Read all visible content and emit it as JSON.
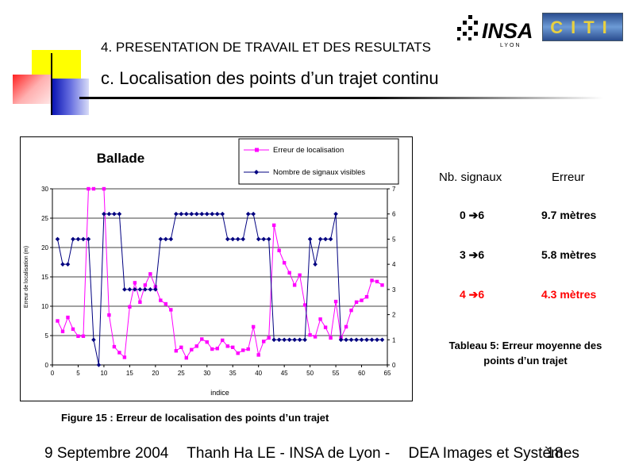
{
  "slide": {
    "section_heading": "4. PRESENTATION DE TRAVAIL ET DES RESULTATS",
    "title": "c. Localisation des points d’un trajet continu",
    "figure_caption": "Figure 15 : Erreur de localisation des points d’un trajet",
    "footer": {
      "date": "9 Septembre 2004",
      "author_lab": "Thanh Ha LE - INSA de Lyon -",
      "course": "DEA Images et Systèmes",
      "page": "18"
    },
    "logos": {
      "insa_name": "INSA",
      "insa_city": "LYON",
      "citi": "CITI"
    }
  },
  "side_table": {
    "headers": [
      "Nb. signaux",
      "Erreur"
    ],
    "rows": [
      {
        "signaux": "0 ➔6",
        "erreur": "9.7 mètres",
        "color": "#000000"
      },
      {
        "signaux": "3 ➔6",
        "erreur": "5.8 mètres",
        "color": "#000000"
      },
      {
        "signaux": "4 ➔6",
        "erreur": "4.3 mètres",
        "color": "#ff0000"
      }
    ],
    "caption": "Tableau 5: Erreur  moyenne des points d’un trajet"
  },
  "chart_data": {
    "type": "line",
    "title": "Ballade",
    "xlabel": "indice",
    "ylabel_left": "Erreur de localisation (m)",
    "xlim": [
      0,
      65
    ],
    "ylim_left": [
      0,
      30
    ],
    "ylim_right": [
      0,
      7
    ],
    "xticks": [
      0,
      5,
      10,
      15,
      20,
      25,
      30,
      35,
      40,
      45,
      50,
      55,
      60,
      65
    ],
    "yticks_left": [
      0,
      5,
      10,
      15,
      20,
      25,
      30
    ],
    "yticks_right": [
      0,
      1,
      2,
      3,
      4,
      5,
      6,
      7
    ],
    "grid": "horizontal",
    "legend_position": "top-right",
    "series": [
      {
        "name": "Erreur de localisation",
        "axis": "left",
        "color": "#ff00ff",
        "marker": "square",
        "x": [
          1,
          2,
          3,
          4,
          5,
          6,
          7,
          8,
          9,
          10,
          11,
          12,
          13,
          14,
          15,
          16,
          17,
          18,
          19,
          20,
          21,
          22,
          23,
          24,
          25,
          26,
          27,
          28,
          29,
          30,
          31,
          32,
          33,
          34,
          35,
          36,
          37,
          38,
          39,
          40,
          41,
          42,
          43,
          44,
          45,
          46,
          47,
          48,
          49,
          50,
          51,
          52,
          53,
          54,
          55,
          56,
          57,
          58,
          59,
          60,
          61,
          62,
          63,
          64
        ],
        "values": [
          7.5,
          5.7,
          8.1,
          6.1,
          4.9,
          4.9,
          30,
          30,
          null,
          30,
          8.5,
          3.1,
          2.1,
          1.3,
          9.9,
          14,
          10.7,
          13.6,
          15.5,
          13.3,
          11,
          10.4,
          9.4,
          2.4,
          3,
          1.2,
          2.6,
          3.2,
          4.4,
          3.9,
          2.7,
          2.8,
          4.2,
          3.2,
          3,
          2,
          2.5,
          2.7,
          6.5,
          1.7,
          4,
          4.6,
          23.8,
          19.5,
          17.4,
          15.7,
          13.6,
          15.3,
          10.2,
          5.1,
          4.8,
          7.8,
          6.4,
          4.6,
          10.8,
          4.6,
          6.5,
          9.3,
          10.7,
          11,
          11.6,
          14.4,
          14.2,
          13.6
        ]
      },
      {
        "name": "Nombre de signaux visibles",
        "axis": "right",
        "color": "#000080",
        "marker": "diamond",
        "x": [
          1,
          2,
          3,
          4,
          5,
          6,
          7,
          8,
          9,
          10,
          11,
          12,
          13,
          14,
          15,
          16,
          17,
          18,
          19,
          20,
          21,
          22,
          23,
          24,
          25,
          26,
          27,
          28,
          29,
          30,
          31,
          32,
          33,
          34,
          35,
          36,
          37,
          38,
          39,
          40,
          41,
          42,
          43,
          44,
          45,
          46,
          47,
          48,
          49,
          50,
          51,
          52,
          53,
          54,
          55,
          56,
          57,
          58,
          59,
          60,
          61,
          62,
          63,
          64
        ],
        "values": [
          5,
          4,
          4,
          5,
          5,
          5,
          5,
          1,
          0,
          6,
          6,
          6,
          6,
          3,
          3,
          3,
          3,
          3,
          3,
          3,
          5,
          5,
          5,
          6,
          6,
          6,
          6,
          6,
          6,
          6,
          6,
          6,
          6,
          5,
          5,
          5,
          5,
          6,
          6,
          5,
          5,
          5,
          1,
          1,
          1,
          1,
          1,
          1,
          1,
          5,
          4,
          5,
          5,
          5,
          6,
          1,
          1,
          1,
          1,
          1,
          1,
          1,
          1,
          1
        ]
      }
    ]
  }
}
